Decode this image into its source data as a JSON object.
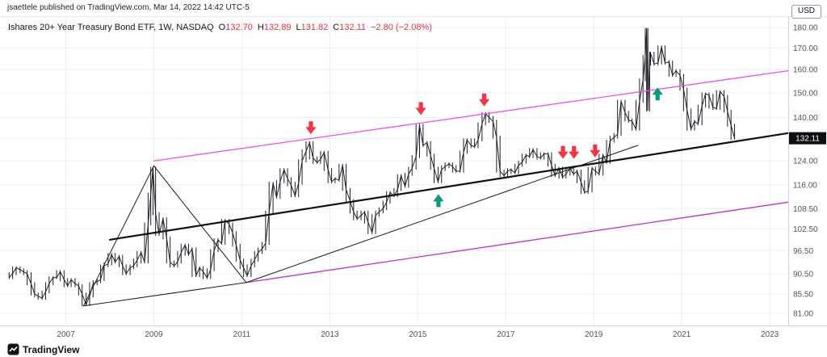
{
  "header": {
    "publisher": "jsaettele published on TradingView.com, Mar 14, 2022 14:42 UTC-5"
  },
  "title": {
    "symbol": "Ishares 20+ Year Treasury Bond ETF, 1W, NASDAQ",
    "ohlc": [
      {
        "label": "O",
        "value": "132.70"
      },
      {
        "label": "H",
        "value": "132.89"
      },
      {
        "label": "L",
        "value": "131.82"
      },
      {
        "label": "C",
        "value": "132.11"
      }
    ],
    "change": "−2.80 (−2.08%)"
  },
  "price_scale": {
    "currency": "USD",
    "labels": [
      "180.00",
      "170.00",
      "160.00",
      "150.00",
      "140.00",
      "124.00",
      "116.00",
      "108.50",
      "102.50",
      "96.50",
      "90.50",
      "85.50",
      "81.00"
    ],
    "label_values": [
      180,
      170,
      160,
      150,
      140,
      124,
      116,
      108.5,
      102.5,
      96.5,
      90.5,
      85.5,
      81
    ],
    "last_price": "132.11",
    "last_price_value": 132.11
  },
  "time_scale": {
    "years": [
      2007,
      2009,
      2011,
      2013,
      2015,
      2017,
      2019,
      2021,
      2023
    ]
  },
  "footer": {
    "brand": "TradingView"
  },
  "colors": {
    "bars": "#1c1f26",
    "grid": "#ebedf2",
    "axis_text": "#50535e",
    "axis_line": "#cfd2da",
    "pink_upper": "#f04ef0",
    "magenta_lower": "#c22ec2",
    "black_line": "#111111",
    "red_arrow": "#f23645",
    "teal_arrow": "#089981",
    "price_tag_bg": "#0c0e12",
    "price_tag_text": "#ffffff"
  },
  "chart_data": {
    "type": "bar",
    "title": "Ishares 20+ Year Treasury Bond ETF, 1W, NASDAQ (TLT) weekly",
    "xlabel": "",
    "ylabel": "USD",
    "scale": "log",
    "x_range": [
      2005.65,
      2023.42
    ],
    "ylim": [
      81,
      180
    ],
    "grid_values": [
      180,
      170,
      160,
      150,
      140,
      132,
      124,
      116,
      108.5,
      102.5,
      96.5,
      90.5,
      85.5,
      81
    ],
    "series": [
      {
        "name": "TLT close (approx, weekly)",
        "points": [
          [
            2005.71,
            89.5
          ],
          [
            2005.79,
            90.5
          ],
          [
            2005.87,
            92.0
          ],
          [
            2005.96,
            91.5
          ],
          [
            2006.04,
            91.0
          ],
          [
            2006.12,
            90.5
          ],
          [
            2006.21,
            88.0
          ],
          [
            2006.29,
            85.5
          ],
          [
            2006.37,
            85.0
          ],
          [
            2006.46,
            84.5
          ],
          [
            2006.54,
            86.0
          ],
          [
            2006.62,
            88.0
          ],
          [
            2006.71,
            89.5
          ],
          [
            2006.79,
            89.5
          ],
          [
            2006.87,
            91.0
          ],
          [
            2006.96,
            89.0
          ],
          [
            2007.04,
            87.5
          ],
          [
            2007.12,
            89.0
          ],
          [
            2007.21,
            88.0
          ],
          [
            2007.29,
            87.5
          ],
          [
            2007.37,
            85.5
          ],
          [
            2007.46,
            83.0
          ],
          [
            2007.54,
            85.0
          ],
          [
            2007.62,
            88.0
          ],
          [
            2007.71,
            88.5
          ],
          [
            2007.79,
            89.0
          ],
          [
            2007.87,
            92.5
          ],
          [
            2007.96,
            93.0
          ],
          [
            2008.04,
            95.5
          ],
          [
            2008.12,
            93.5
          ],
          [
            2008.21,
            95.0
          ],
          [
            2008.29,
            92.5
          ],
          [
            2008.37,
            90.5
          ],
          [
            2008.46,
            92.0
          ],
          [
            2008.54,
            92.5
          ],
          [
            2008.62,
            94.0
          ],
          [
            2008.71,
            96.0
          ],
          [
            2008.79,
            93.5
          ],
          [
            2008.87,
            104.0
          ],
          [
            2008.93,
            113.0
          ],
          [
            2008.98,
            121.5
          ],
          [
            2009.04,
            107.0
          ],
          [
            2009.12,
            101.0
          ],
          [
            2009.21,
            105.5
          ],
          [
            2009.29,
            100.0
          ],
          [
            2009.37,
            93.5
          ],
          [
            2009.46,
            92.5
          ],
          [
            2009.54,
            93.5
          ],
          [
            2009.62,
            96.0
          ],
          [
            2009.71,
            98.0
          ],
          [
            2009.79,
            95.5
          ],
          [
            2009.87,
            97.0
          ],
          [
            2009.96,
            90.0
          ],
          [
            2010.04,
            92.0
          ],
          [
            2010.12,
            91.0
          ],
          [
            2010.21,
            89.5
          ],
          [
            2010.29,
            91.5
          ],
          [
            2010.37,
            96.5
          ],
          [
            2010.46,
            99.5
          ],
          [
            2010.54,
            98.5
          ],
          [
            2010.62,
            105.0
          ],
          [
            2010.71,
            104.0
          ],
          [
            2010.79,
            101.5
          ],
          [
            2010.87,
            98.0
          ],
          [
            2010.96,
            94.0
          ],
          [
            2011.04,
            92.0
          ],
          [
            2011.12,
            90.0
          ],
          [
            2011.21,
            92.5
          ],
          [
            2011.29,
            94.0
          ],
          [
            2011.37,
            96.0
          ],
          [
            2011.46,
            97.0
          ],
          [
            2011.54,
            98.5
          ],
          [
            2011.62,
            107.5
          ],
          [
            2011.71,
            116.5
          ],
          [
            2011.79,
            112.0
          ],
          [
            2011.87,
            117.0
          ],
          [
            2011.96,
            121.0
          ],
          [
            2012.04,
            118.0
          ],
          [
            2012.12,
            116.0
          ],
          [
            2012.21,
            112.5
          ],
          [
            2012.29,
            116.5
          ],
          [
            2012.37,
            124.0
          ],
          [
            2012.46,
            127.5
          ],
          [
            2012.54,
            130.5
          ],
          [
            2012.62,
            125.0
          ],
          [
            2012.71,
            123.5
          ],
          [
            2012.79,
            124.5
          ],
          [
            2012.87,
            127.0
          ],
          [
            2012.96,
            121.0
          ],
          [
            2013.04,
            117.0
          ],
          [
            2013.12,
            118.0
          ],
          [
            2013.21,
            117.5
          ],
          [
            2013.29,
            122.5
          ],
          [
            2013.37,
            114.5
          ],
          [
            2013.46,
            111.0
          ],
          [
            2013.54,
            107.5
          ],
          [
            2013.62,
            105.5
          ],
          [
            2013.71,
            106.5
          ],
          [
            2013.79,
            107.5
          ],
          [
            2013.87,
            104.5
          ],
          [
            2013.96,
            101.5
          ],
          [
            2014.04,
            106.5
          ],
          [
            2014.12,
            107.5
          ],
          [
            2014.21,
            108.5
          ],
          [
            2014.29,
            110.5
          ],
          [
            2014.37,
            113.5
          ],
          [
            2014.46,
            112.5
          ],
          [
            2014.54,
            114.5
          ],
          [
            2014.62,
            119.0
          ],
          [
            2014.71,
            115.5
          ],
          [
            2014.79,
            119.5
          ],
          [
            2014.87,
            121.5
          ],
          [
            2014.96,
            125.5
          ],
          [
            2015.04,
            137.0
          ],
          [
            2015.12,
            129.5
          ],
          [
            2015.21,
            130.5
          ],
          [
            2015.29,
            126.0
          ],
          [
            2015.37,
            121.5
          ],
          [
            2015.46,
            117.0
          ],
          [
            2015.54,
            121.0
          ],
          [
            2015.62,
            122.0
          ],
          [
            2015.71,
            123.0
          ],
          [
            2015.79,
            122.0
          ],
          [
            2015.87,
            120.5
          ],
          [
            2015.96,
            120.5
          ],
          [
            2016.04,
            127.0
          ],
          [
            2016.12,
            131.5
          ],
          [
            2016.21,
            129.5
          ],
          [
            2016.29,
            129.0
          ],
          [
            2016.37,
            131.5
          ],
          [
            2016.46,
            137.5
          ],
          [
            2016.54,
            141.5
          ],
          [
            2016.62,
            140.0
          ],
          [
            2016.71,
            138.5
          ],
          [
            2016.79,
            132.5
          ],
          [
            2016.87,
            120.5
          ],
          [
            2016.96,
            119.0
          ],
          [
            2017.04,
            120.5
          ],
          [
            2017.12,
            121.0
          ],
          [
            2017.21,
            120.0
          ],
          [
            2017.29,
            122.5
          ],
          [
            2017.37,
            123.5
          ],
          [
            2017.46,
            126.0
          ],
          [
            2017.54,
            125.5
          ],
          [
            2017.62,
            128.0
          ],
          [
            2017.71,
            125.5
          ],
          [
            2017.79,
            125.0
          ],
          [
            2017.87,
            126.5
          ],
          [
            2017.96,
            126.5
          ],
          [
            2018.04,
            122.5
          ],
          [
            2018.12,
            119.0
          ],
          [
            2018.21,
            121.5
          ],
          [
            2018.29,
            118.5
          ],
          [
            2018.37,
            119.5
          ],
          [
            2018.46,
            121.5
          ],
          [
            2018.54,
            119.5
          ],
          [
            2018.62,
            120.5
          ],
          [
            2018.71,
            117.0
          ],
          [
            2018.79,
            113.5
          ],
          [
            2018.87,
            114.0
          ],
          [
            2018.96,
            121.5
          ],
          [
            2019.04,
            120.5
          ],
          [
            2019.12,
            119.5
          ],
          [
            2019.21,
            126.0
          ],
          [
            2019.29,
            123.5
          ],
          [
            2019.37,
            131.0
          ],
          [
            2019.46,
            132.5
          ],
          [
            2019.54,
            133.5
          ],
          [
            2019.62,
            146.5
          ],
          [
            2019.71,
            142.0
          ],
          [
            2019.79,
            139.0
          ],
          [
            2019.87,
            138.5
          ],
          [
            2019.96,
            135.5
          ],
          [
            2020.04,
            146.5
          ],
          [
            2020.12,
            155.5
          ],
          [
            2020.17,
            166.0
          ],
          [
            2020.2,
            179.0
          ],
          [
            2020.23,
            143.0
          ],
          [
            2020.27,
            165.0
          ],
          [
            2020.29,
            167.5
          ],
          [
            2020.37,
            162.5
          ],
          [
            2020.46,
            163.0
          ],
          [
            2020.54,
            170.5
          ],
          [
            2020.62,
            163.0
          ],
          [
            2020.71,
            163.5
          ],
          [
            2020.79,
            157.5
          ],
          [
            2020.87,
            159.5
          ],
          [
            2020.96,
            157.5
          ],
          [
            2021.04,
            151.5
          ],
          [
            2021.12,
            143.0
          ],
          [
            2021.21,
            135.5
          ],
          [
            2021.29,
            138.5
          ],
          [
            2021.37,
            137.5
          ],
          [
            2021.46,
            144.5
          ],
          [
            2021.54,
            149.5
          ],
          [
            2021.62,
            149.0
          ],
          [
            2021.71,
            144.0
          ],
          [
            2021.79,
            143.5
          ],
          [
            2021.87,
            150.5
          ],
          [
            2021.96,
            148.5
          ],
          [
            2022.04,
            142.5
          ],
          [
            2022.12,
            137.0
          ],
          [
            2022.2,
            132.11
          ]
        ]
      }
    ],
    "trendlines": [
      {
        "name": "upper-channel-line",
        "color": "#f04ef0",
        "width": 1.3,
        "x1": 2009.0,
        "y1": 124.0,
        "x2": 2023.42,
        "y2": 159.5
      },
      {
        "name": "lower-channel-line",
        "color": "#c22ec2",
        "width": 1.3,
        "x1": 2011.1,
        "y1": 88.3,
        "x2": 2023.42,
        "y2": 110.5
      },
      {
        "name": "median-trendline",
        "color": "#111111",
        "width": 2.2,
        "x1": 2008.0,
        "y1": 99.5,
        "x2": 2023.42,
        "y2": 134.0
      },
      {
        "name": "triangle-left-side",
        "color": "#1a1a1a",
        "width": 1,
        "x1": 2007.4,
        "y1": 82.7,
        "x2": 2009.0,
        "y2": 122.3
      },
      {
        "name": "triangle-right-side",
        "color": "#1a1a1a",
        "width": 1,
        "x1": 2009.0,
        "y1": 122.3,
        "x2": 2011.1,
        "y2": 88.3
      },
      {
        "name": "triangle-base",
        "color": "#1a1a1a",
        "width": 1,
        "x1": 2007.4,
        "y1": 82.7,
        "x2": 2011.1,
        "y2": 88.3
      },
      {
        "name": "support-extension",
        "color": "#1a1a1a",
        "width": 1,
        "x1": 2011.1,
        "y1": 88.3,
        "x2": 2020.0,
        "y2": 129.5
      }
    ],
    "arrows": [
      {
        "x": 2012.57,
        "price": 136.0,
        "dir": "down",
        "color": "#f23645"
      },
      {
        "x": 2015.07,
        "price": 143.5,
        "dir": "down",
        "color": "#f23645"
      },
      {
        "x": 2016.51,
        "price": 147.0,
        "dir": "down",
        "color": "#f23645"
      },
      {
        "x": 2018.3,
        "price": 127.0,
        "dir": "down",
        "color": "#f23645"
      },
      {
        "x": 2018.55,
        "price": 127.0,
        "dir": "down",
        "color": "#f23645"
      },
      {
        "x": 2019.03,
        "price": 127.5,
        "dir": "down",
        "color": "#f23645"
      },
      {
        "x": 2015.47,
        "price": 111.0,
        "dir": "up",
        "color": "#089981"
      },
      {
        "x": 2020.45,
        "price": 149.5,
        "dir": "up",
        "color": "#089981"
      }
    ]
  }
}
